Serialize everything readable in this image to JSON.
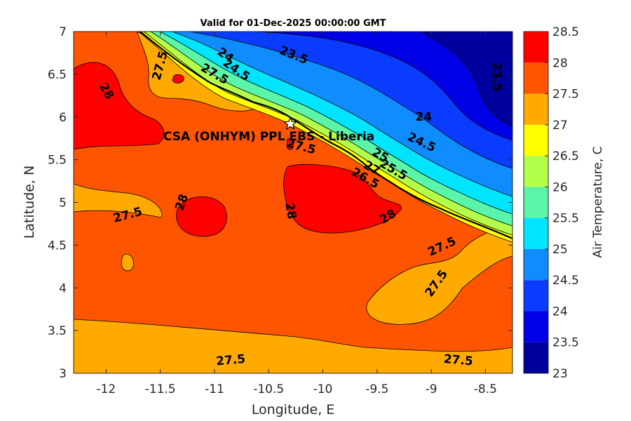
{
  "chart_data": {
    "type": "heatmap",
    "title": "Valid for 01-Dec-2025 00:00:00 GMT",
    "xlabel": "Longitude, E",
    "ylabel": "Latitude, N",
    "xlim": [
      -12.3,
      -8.25
    ],
    "ylim": [
      3,
      7
    ],
    "x_ticks": [
      "-12",
      "-11.5",
      "-11",
      "-10.5",
      "-10",
      "-9.5",
      "-9",
      "-8.5"
    ],
    "x_tick_values": [
      -12,
      -11.5,
      -11,
      -10.5,
      -10,
      -9.5,
      -9,
      -8.5
    ],
    "y_ticks": [
      "3",
      "3.5",
      "4",
      "4.5",
      "5",
      "5.5",
      "6",
      "6.5",
      "7"
    ],
    "y_tick_values": [
      3,
      3.5,
      4,
      4.5,
      5,
      5.5,
      6,
      6.5,
      7
    ],
    "colorbar": {
      "label": "Air Temperature, C",
      "levels": [
        23,
        23.5,
        24,
        24.5,
        25,
        25.5,
        26,
        26.5,
        27,
        27.5,
        28,
        28.5
      ],
      "tick_labels": [
        "23",
        "23.5",
        "24",
        "24.5",
        "25",
        "25.5",
        "26",
        "26.5",
        "27",
        "27.5",
        "28",
        "28.5"
      ],
      "colors": [
        "#00009f",
        "#0000e6",
        "#0a3cff",
        "#0f8cff",
        "#00e4ff",
        "#5af5a8",
        "#b4ff4a",
        "#ffff00",
        "#ffaa00",
        "#ff5500",
        "#ff0000"
      ]
    },
    "site": {
      "label": "CSA (ONHYM) PPL EBS  - Liberia",
      "lon": -10.3,
      "lat": 5.92
    },
    "contour_labels": [
      {
        "text": "23.5",
        "lon": -10.27,
        "lat": 6.72,
        "angle": 22
      },
      {
        "text": "23.5",
        "lon": -8.4,
        "lat": 6.47,
        "angle": 90
      },
      {
        "text": "24",
        "lon": -9.07,
        "lat": 6.0,
        "angle": 0
      },
      {
        "text": "24",
        "lon": -10.9,
        "lat": 6.72,
        "angle": 35
      },
      {
        "text": "24.5",
        "lon": -9.09,
        "lat": 5.7,
        "angle": 25
      },
      {
        "text": "24.5",
        "lon": -10.8,
        "lat": 6.55,
        "angle": 35
      },
      {
        "text": "25",
        "lon": -9.47,
        "lat": 5.55,
        "angle": 30
      },
      {
        "text": "25.5",
        "lon": -9.35,
        "lat": 5.38,
        "angle": 30
      },
      {
        "text": "26.5",
        "lon": -9.61,
        "lat": 5.28,
        "angle": 30
      },
      {
        "text": "27",
        "lon": -9.55,
        "lat": 5.4,
        "angle": 30
      },
      {
        "text": "27.5",
        "lon": -11.5,
        "lat": 6.6,
        "angle": -75
      },
      {
        "text": "27.5",
        "lon": -11.0,
        "lat": 6.5,
        "angle": 30
      },
      {
        "text": "27.5",
        "lon": -10.2,
        "lat": 5.65,
        "angle": 15
      },
      {
        "text": "27.5",
        "lon": -11.8,
        "lat": 4.85,
        "angle": -15
      },
      {
        "text": "27.5",
        "lon": -8.9,
        "lat": 4.48,
        "angle": -25
      },
      {
        "text": "27.5",
        "lon": -8.95,
        "lat": 4.05,
        "angle": -55
      },
      {
        "text": "27.5",
        "lon": -10.85,
        "lat": 3.15,
        "angle": -5
      },
      {
        "text": "27.5",
        "lon": -8.75,
        "lat": 3.15,
        "angle": 5
      },
      {
        "text": "28",
        "lon": -12.0,
        "lat": 6.3,
        "angle": 60
      },
      {
        "text": "28",
        "lon": -11.3,
        "lat": 5.0,
        "angle": -70
      },
      {
        "text": "28",
        "lon": -10.3,
        "lat": 4.9,
        "angle": 80
      },
      {
        "text": "28",
        "lon": -9.4,
        "lat": 4.83,
        "angle": -30
      }
    ]
  }
}
